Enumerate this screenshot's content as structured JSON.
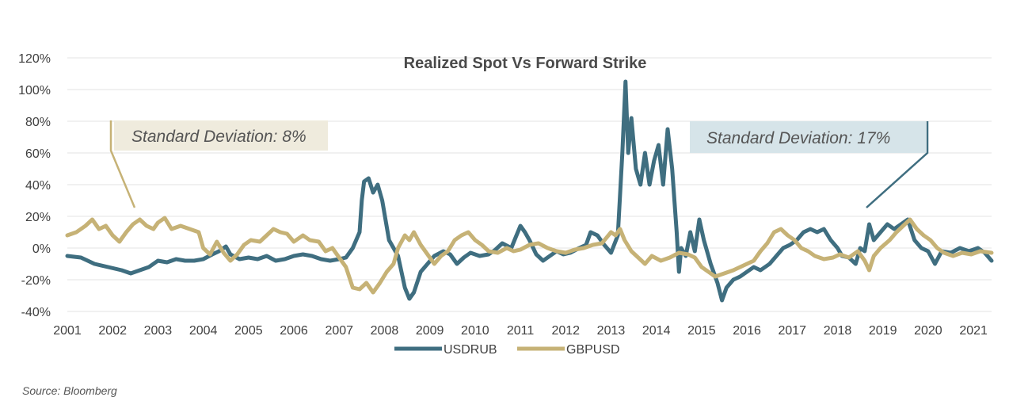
{
  "chart_data": {
    "type": "line",
    "title": "Realized Spot Vs Forward Strike",
    "source": "Source: Bloomberg",
    "ylim": [
      -40,
      120
    ],
    "xlim": [
      2001,
      2021.4
    ],
    "y_ticks": [
      "120%",
      "100%",
      "80%",
      "60%",
      "40%",
      "20%",
      "0%",
      "-20%",
      "-40%"
    ],
    "y_tick_values": [
      120,
      100,
      80,
      60,
      40,
      20,
      0,
      -20,
      -40
    ],
    "x_ticks": [
      "2001",
      "2002",
      "2003",
      "2004",
      "2005",
      "2006",
      "2007",
      "2008",
      "2009",
      "2010",
      "2011",
      "2012",
      "2013",
      "2014",
      "2015",
      "2016",
      "2017",
      "2018",
      "2019",
      "2020",
      "2021"
    ],
    "x_tick_values": [
      2001,
      2002,
      2003,
      2004,
      2005,
      2006,
      2007,
      2008,
      2009,
      2010,
      2011,
      2012,
      2013,
      2014,
      2015,
      2016,
      2017,
      2018,
      2019,
      2020,
      2021
    ],
    "grid": "horizontal",
    "legend": "bottom",
    "annotations": [
      {
        "text": "Standard Deviation: 8%",
        "series": "GBPUSD"
      },
      {
        "text": "Standard Deviation: 17%",
        "series": "USDRUB"
      }
    ],
    "colors": {
      "USDRUB": "#3f6e80",
      "GBPUSD": "#c6b276",
      "annot_gbp_bg": "#efebdd",
      "annot_rub_bg": "#d6e4e9"
    },
    "series": [
      {
        "name": "USDRUB",
        "color": "#3f6e80",
        "points": [
          [
            2001.0,
            -5
          ],
          [
            2001.3,
            -6
          ],
          [
            2001.6,
            -10
          ],
          [
            2001.9,
            -12
          ],
          [
            2002.2,
            -14
          ],
          [
            2002.4,
            -16
          ],
          [
            2002.6,
            -14
          ],
          [
            2002.8,
            -12
          ],
          [
            2003.0,
            -8
          ],
          [
            2003.2,
            -9
          ],
          [
            2003.4,
            -7
          ],
          [
            2003.6,
            -8
          ],
          [
            2003.8,
            -8
          ],
          [
            2004.0,
            -7
          ],
          [
            2004.2,
            -4
          ],
          [
            2004.35,
            -2
          ],
          [
            2004.5,
            1
          ],
          [
            2004.6,
            -4
          ],
          [
            2004.8,
            -7
          ],
          [
            2005.0,
            -6
          ],
          [
            2005.2,
            -7
          ],
          [
            2005.4,
            -5
          ],
          [
            2005.6,
            -8
          ],
          [
            2005.8,
            -7
          ],
          [
            2006.0,
            -5
          ],
          [
            2006.2,
            -4
          ],
          [
            2006.4,
            -5
          ],
          [
            2006.6,
            -7
          ],
          [
            2006.8,
            -8
          ],
          [
            2007.0,
            -7
          ],
          [
            2007.15,
            -6
          ],
          [
            2007.3,
            0
          ],
          [
            2007.45,
            10
          ],
          [
            2007.5,
            30
          ],
          [
            2007.55,
            42
          ],
          [
            2007.65,
            44
          ],
          [
            2007.75,
            35
          ],
          [
            2007.85,
            40
          ],
          [
            2007.95,
            30
          ],
          [
            2008.1,
            5
          ],
          [
            2008.3,
            -5
          ],
          [
            2008.45,
            -25
          ],
          [
            2008.55,
            -32
          ],
          [
            2008.65,
            -28
          ],
          [
            2008.8,
            -15
          ],
          [
            2008.95,
            -10
          ],
          [
            2009.1,
            -5
          ],
          [
            2009.3,
            -2
          ],
          [
            2009.45,
            -4
          ],
          [
            2009.6,
            -10
          ],
          [
            2009.75,
            -6
          ],
          [
            2009.9,
            -3
          ],
          [
            2010.1,
            -5
          ],
          [
            2010.3,
            -4
          ],
          [
            2010.45,
            -1
          ],
          [
            2010.6,
            3
          ],
          [
            2010.8,
            0
          ],
          [
            2010.9,
            7
          ],
          [
            2011.0,
            14
          ],
          [
            2011.1,
            10
          ],
          [
            2011.2,
            5
          ],
          [
            2011.35,
            -4
          ],
          [
            2011.5,
            -8
          ],
          [
            2011.65,
            -5
          ],
          [
            2011.8,
            -2
          ],
          [
            2011.95,
            -4
          ],
          [
            2012.1,
            -3
          ],
          [
            2012.3,
            0
          ],
          [
            2012.45,
            2
          ],
          [
            2012.55,
            10
          ],
          [
            2012.7,
            8
          ],
          [
            2012.85,
            2
          ],
          [
            2013.0,
            -3
          ],
          [
            2013.15,
            8
          ],
          [
            2013.25,
            60
          ],
          [
            2013.32,
            105
          ],
          [
            2013.38,
            60
          ],
          [
            2013.45,
            82
          ],
          [
            2013.55,
            50
          ],
          [
            2013.65,
            40
          ],
          [
            2013.75,
            60
          ],
          [
            2013.85,
            40
          ],
          [
            2013.95,
            55
          ],
          [
            2014.05,
            65
          ],
          [
            2014.15,
            40
          ],
          [
            2014.25,
            75
          ],
          [
            2014.35,
            50
          ],
          [
            2014.45,
            10
          ],
          [
            2014.5,
            -15
          ],
          [
            2014.55,
            0
          ],
          [
            2014.65,
            -5
          ],
          [
            2014.75,
            10
          ],
          [
            2014.85,
            -2
          ],
          [
            2014.95,
            18
          ],
          [
            2015.05,
            5
          ],
          [
            2015.2,
            -10
          ],
          [
            2015.35,
            -22
          ],
          [
            2015.45,
            -33
          ],
          [
            2015.55,
            -25
          ],
          [
            2015.7,
            -20
          ],
          [
            2015.85,
            -18
          ],
          [
            2016.0,
            -15
          ],
          [
            2016.15,
            -12
          ],
          [
            2016.3,
            -14
          ],
          [
            2016.5,
            -10
          ],
          [
            2016.65,
            -5
          ],
          [
            2016.8,
            0
          ],
          [
            2016.95,
            2
          ],
          [
            2017.1,
            5
          ],
          [
            2017.25,
            10
          ],
          [
            2017.4,
            12
          ],
          [
            2017.55,
            10
          ],
          [
            2017.7,
            12
          ],
          [
            2017.85,
            5
          ],
          [
            2018.0,
            0
          ],
          [
            2018.1,
            -5
          ],
          [
            2018.25,
            -6
          ],
          [
            2018.4,
            -10
          ],
          [
            2018.5,
            0
          ],
          [
            2018.6,
            -2
          ],
          [
            2018.7,
            15
          ],
          [
            2018.8,
            5
          ],
          [
            2018.95,
            10
          ],
          [
            2019.1,
            15
          ],
          [
            2019.25,
            12
          ],
          [
            2019.4,
            15
          ],
          [
            2019.55,
            18
          ],
          [
            2019.7,
            5
          ],
          [
            2019.85,
            0
          ],
          [
            2020.0,
            -2
          ],
          [
            2020.15,
            -10
          ],
          [
            2020.3,
            -2
          ],
          [
            2020.5,
            -3
          ],
          [
            2020.7,
            0
          ],
          [
            2020.9,
            -2
          ],
          [
            2021.1,
            0
          ],
          [
            2021.25,
            -3
          ],
          [
            2021.4,
            -8
          ]
        ]
      },
      {
        "name": "GBPUSD",
        "color": "#c6b276",
        "points": [
          [
            2001.0,
            8
          ],
          [
            2001.2,
            10
          ],
          [
            2001.4,
            14
          ],
          [
            2001.55,
            18
          ],
          [
            2001.7,
            12
          ],
          [
            2001.85,
            14
          ],
          [
            2002.0,
            8
          ],
          [
            2002.15,
            4
          ],
          [
            2002.3,
            10
          ],
          [
            2002.45,
            15
          ],
          [
            2002.6,
            18
          ],
          [
            2002.75,
            14
          ],
          [
            2002.9,
            12
          ],
          [
            2003.0,
            16
          ],
          [
            2003.15,
            19
          ],
          [
            2003.3,
            12
          ],
          [
            2003.5,
            14
          ],
          [
            2003.7,
            12
          ],
          [
            2003.9,
            10
          ],
          [
            2004.0,
            0
          ],
          [
            2004.15,
            -4
          ],
          [
            2004.3,
            4
          ],
          [
            2004.45,
            -3
          ],
          [
            2004.6,
            -8
          ],
          [
            2004.75,
            -4
          ],
          [
            2004.9,
            2
          ],
          [
            2005.05,
            5
          ],
          [
            2005.25,
            4
          ],
          [
            2005.4,
            8
          ],
          [
            2005.55,
            12
          ],
          [
            2005.7,
            10
          ],
          [
            2005.85,
            9
          ],
          [
            2006.0,
            4
          ],
          [
            2006.2,
            8
          ],
          [
            2006.35,
            5
          ],
          [
            2006.55,
            4
          ],
          [
            2006.7,
            -2
          ],
          [
            2006.85,
            0
          ],
          [
            2007.0,
            -6
          ],
          [
            2007.15,
            -12
          ],
          [
            2007.3,
            -25
          ],
          [
            2007.45,
            -26
          ],
          [
            2007.6,
            -22
          ],
          [
            2007.75,
            -28
          ],
          [
            2007.9,
            -22
          ],
          [
            2008.05,
            -15
          ],
          [
            2008.2,
            -10
          ],
          [
            2008.3,
            0
          ],
          [
            2008.45,
            8
          ],
          [
            2008.55,
            5
          ],
          [
            2008.65,
            10
          ],
          [
            2008.8,
            2
          ],
          [
            2008.95,
            -4
          ],
          [
            2009.1,
            -10
          ],
          [
            2009.25,
            -5
          ],
          [
            2009.4,
            -2
          ],
          [
            2009.55,
            5
          ],
          [
            2009.7,
            8
          ],
          [
            2009.85,
            10
          ],
          [
            2010.0,
            5
          ],
          [
            2010.15,
            2
          ],
          [
            2010.3,
            -2
          ],
          [
            2010.5,
            -3
          ],
          [
            2010.7,
            0
          ],
          [
            2010.85,
            -2
          ],
          [
            2011.0,
            -1
          ],
          [
            2011.2,
            2
          ],
          [
            2011.4,
            3
          ],
          [
            2011.6,
            0
          ],
          [
            2011.8,
            -2
          ],
          [
            2012.0,
            -3
          ],
          [
            2012.2,
            -1
          ],
          [
            2012.4,
            0
          ],
          [
            2012.6,
            2
          ],
          [
            2012.8,
            3
          ],
          [
            2013.0,
            10
          ],
          [
            2013.1,
            8
          ],
          [
            2013.2,
            12
          ],
          [
            2013.3,
            5
          ],
          [
            2013.45,
            -2
          ],
          [
            2013.6,
            -6
          ],
          [
            2013.75,
            -10
          ],
          [
            2013.9,
            -5
          ],
          [
            2014.1,
            -8
          ],
          [
            2014.3,
            -6
          ],
          [
            2014.5,
            -3
          ],
          [
            2014.7,
            -4
          ],
          [
            2014.85,
            -6
          ],
          [
            2015.0,
            -12
          ],
          [
            2015.15,
            -15
          ],
          [
            2015.3,
            -18
          ],
          [
            2015.5,
            -16
          ],
          [
            2015.7,
            -14
          ],
          [
            2015.85,
            -12
          ],
          [
            2016.0,
            -10
          ],
          [
            2016.15,
            -8
          ],
          [
            2016.3,
            -2
          ],
          [
            2016.45,
            3
          ],
          [
            2016.6,
            10
          ],
          [
            2016.75,
            12
          ],
          [
            2016.9,
            8
          ],
          [
            2017.05,
            5
          ],
          [
            2017.2,
            0
          ],
          [
            2017.35,
            -2
          ],
          [
            2017.5,
            -5
          ],
          [
            2017.7,
            -7
          ],
          [
            2017.9,
            -6
          ],
          [
            2018.05,
            -4
          ],
          [
            2018.25,
            -6
          ],
          [
            2018.45,
            -2
          ],
          [
            2018.6,
            -8
          ],
          [
            2018.7,
            -14
          ],
          [
            2018.8,
            -5
          ],
          [
            2018.95,
            0
          ],
          [
            2019.15,
            5
          ],
          [
            2019.3,
            10
          ],
          [
            2019.45,
            14
          ],
          [
            2019.6,
            18
          ],
          [
            2019.75,
            12
          ],
          [
            2019.9,
            8
          ],
          [
            2020.05,
            5
          ],
          [
            2020.2,
            0
          ],
          [
            2020.35,
            -3
          ],
          [
            2020.55,
            -5
          ],
          [
            2020.75,
            -3
          ],
          [
            2020.95,
            -4
          ],
          [
            2021.15,
            -2
          ],
          [
            2021.4,
            -3
          ]
        ]
      }
    ]
  }
}
